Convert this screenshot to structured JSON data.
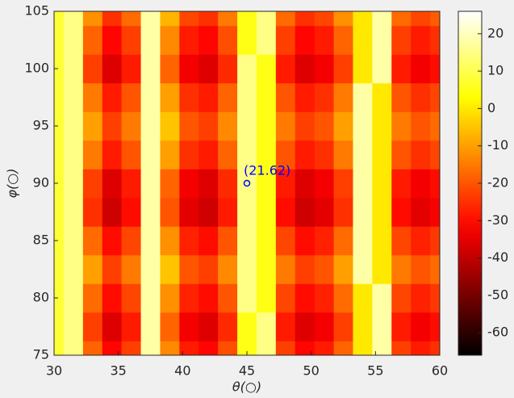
{
  "chart_data": {
    "type": "heatmap",
    "colormap": "hot",
    "xlabel": "θ(○)",
    "ylabel": "φ(○)",
    "xlim": [
      30,
      60
    ],
    "ylim": [
      75,
      105
    ],
    "xticks": [
      30,
      35,
      40,
      45,
      50,
      55,
      60
    ],
    "yticks": [
      75,
      80,
      85,
      90,
      95,
      100,
      105
    ],
    "zlim": [
      -66,
      26
    ],
    "zticks": [
      -60,
      -50,
      -40,
      -30,
      -20,
      -10,
      0,
      10,
      20
    ],
    "x": [
      30,
      31.5,
      33,
      34.5,
      36,
      37.5,
      39,
      40.5,
      42,
      43.5,
      45,
      46.5,
      48,
      49.5,
      51,
      52.5,
      54,
      55.5,
      57,
      58.5,
      60
    ],
    "y": [
      75,
      77.5,
      80,
      82.5,
      85,
      87.5,
      90,
      92.5,
      95,
      97.5,
      100,
      102.5,
      105
    ],
    "z": [
      [
        8,
        15,
        -18,
        -31,
        -23,
        18,
        -13,
        -28,
        -31,
        -21,
        5,
        15,
        -23,
        -31,
        -28,
        -18,
        0,
        18,
        -23,
        -28,
        -25
      ],
      [
        8,
        15,
        -23,
        -36,
        -28,
        18,
        -18,
        -33,
        -36,
        -26,
        5,
        15,
        -28,
        -36,
        -33,
        -23,
        0,
        18,
        -28,
        -33,
        -30
      ],
      [
        8,
        15,
        -17,
        -30,
        -22,
        18,
        -12,
        -27,
        -30,
        -20,
        15,
        5,
        -22,
        -30,
        -27,
        -17,
        0,
        18,
        -22,
        -27,
        -24
      ],
      [
        8,
        15,
        -10,
        -23,
        -15,
        18,
        -5,
        -20,
        -23,
        -13,
        15,
        5,
        -15,
        -23,
        -20,
        -10,
        18,
        0,
        -15,
        -20,
        -17
      ],
      [
        8,
        15,
        -17,
        -30,
        -22,
        18,
        -12,
        -27,
        -30,
        -20,
        15,
        5,
        -22,
        -30,
        -27,
        -17,
        18,
        0,
        -22,
        -27,
        -24
      ],
      [
        8,
        15,
        -25,
        -38,
        -30,
        18,
        -20,
        -35,
        -38,
        -28,
        15,
        5,
        -30,
        -38,
        -35,
        -25,
        18,
        0,
        -30,
        -35,
        -32
      ],
      [
        8,
        15,
        -23,
        -36,
        -28,
        18,
        -18,
        -33,
        -36,
        -26,
        15,
        5,
        -28,
        -36,
        -33,
        -23,
        18,
        0,
        -28,
        -33,
        -30
      ],
      [
        8,
        15,
        -15,
        -28,
        -20,
        18,
        -10,
        -25,
        -28,
        -18,
        15,
        5,
        -20,
        -28,
        -25,
        -15,
        18,
        0,
        -20,
        -25,
        -22
      ],
      [
        8,
        15,
        -10,
        -23,
        -15,
        18,
        -5,
        -20,
        -23,
        -13,
        15,
        5,
        -15,
        -23,
        -20,
        -10,
        18,
        0,
        -15,
        -20,
        -17
      ],
      [
        8,
        15,
        -15,
        -28,
        -20,
        18,
        -10,
        -25,
        -28,
        -18,
        15,
        5,
        -20,
        -28,
        -25,
        -15,
        18,
        0,
        -20,
        -25,
        -22
      ],
      [
        8,
        15,
        -23,
        -36,
        -28,
        18,
        -18,
        -33,
        -36,
        -26,
        15,
        5,
        -28,
        -36,
        -33,
        -23,
        0,
        18,
        -28,
        -33,
        -30
      ],
      [
        8,
        15,
        -18,
        -31,
        -23,
        18,
        -13,
        -28,
        -31,
        -21,
        5,
        15,
        -23,
        -31,
        -28,
        -18,
        0,
        18,
        -23,
        -28,
        -25
      ],
      [
        8,
        15,
        -12,
        -25,
        -17,
        18,
        -7,
        -22,
        -25,
        -15,
        5,
        15,
        -17,
        -25,
        -22,
        -12,
        0,
        18,
        -17,
        -22,
        -19
      ]
    ],
    "annotations": [
      {
        "x": 45,
        "y": 90,
        "text": "(21.62)",
        "color": "#0000ff"
      }
    ]
  }
}
